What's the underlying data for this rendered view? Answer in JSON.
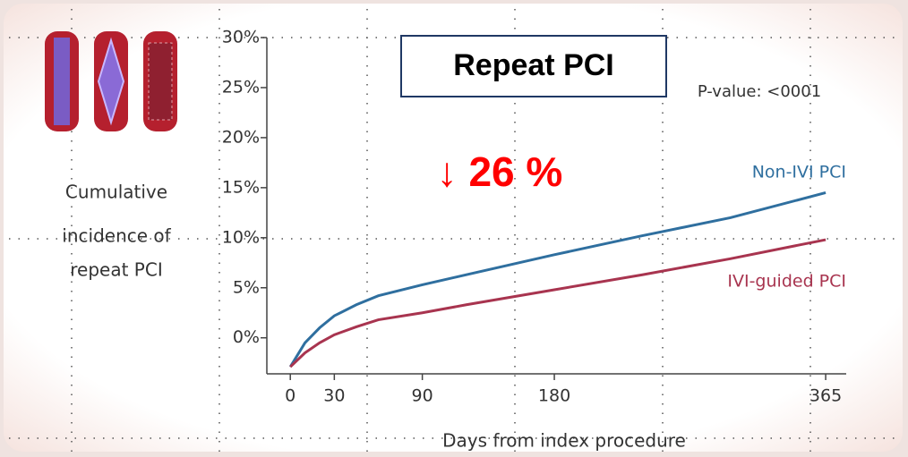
{
  "chart_data": {
    "type": "line",
    "title": "Repeat PCI",
    "subtitle": "P-value: <0001",
    "annotation": "↓ 26 %",
    "ylabel": [
      "Cumulative",
      "incidence of",
      "repeat PCI"
    ],
    "xlabel": "Days from index procedure",
    "x": [
      0,
      10,
      20,
      30,
      45,
      60,
      90,
      120,
      180,
      240,
      300,
      365
    ],
    "series": [
      {
        "name": "Non-IVI PCI",
        "color": "#2f6f9f",
        "values": [
          -2.9,
          -0.5,
          1.0,
          2.2,
          3.3,
          4.2,
          5.3,
          6.3,
          8.3,
          10.2,
          12.0,
          14.5
        ]
      },
      {
        "name": "IVI-guided PCI",
        "color": "#a8344f",
        "values": [
          -2.9,
          -1.5,
          -0.5,
          0.3,
          1.1,
          1.8,
          2.5,
          3.3,
          4.8,
          6.3,
          7.9,
          9.8
        ]
      }
    ],
    "xlim": [
      -16,
      379
    ],
    "xticks": [
      0,
      30,
      90,
      180,
      365
    ],
    "ylim": [
      -3.6,
      30
    ],
    "yticks": [
      {
        "value": 0,
        "label": "0%"
      },
      {
        "value": 5,
        "label": "5%"
      },
      {
        "value": 10,
        "label": "10%"
      },
      {
        "value": 15,
        "label": "15%"
      },
      {
        "value": 20,
        "label": "20%"
      },
      {
        "value": 25,
        "label": "25%"
      },
      {
        "value": 30,
        "label": "30%"
      }
    ]
  }
}
